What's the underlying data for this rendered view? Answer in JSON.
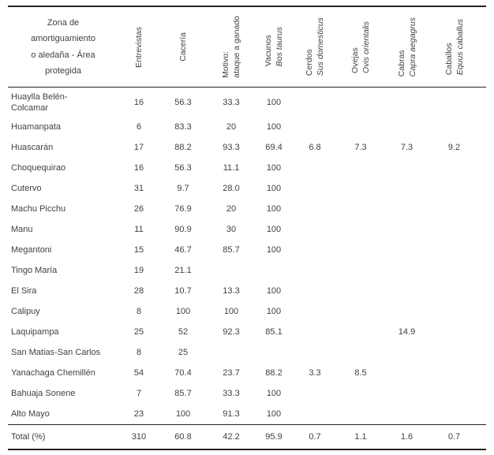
{
  "table": {
    "header": {
      "zone_lines": [
        "Zona de",
        "amortiguamiento",
        "o aledaña - Área",
        "protegida"
      ],
      "columns": [
        {
          "label": "Entrevistas",
          "sublabel": ""
        },
        {
          "label": "Cacería",
          "sublabel": ""
        },
        {
          "label": "Motivo:",
          "sublabel": "ataque a ganado",
          "sublabel_italic": false
        },
        {
          "label": "Vacunos",
          "sublabel": "Bos taurus",
          "sublabel_italic": true
        },
        {
          "label": "Cerdos",
          "sublabel": "Sus domesticus",
          "sublabel_italic": true
        },
        {
          "label": "Ovejas",
          "sublabel": "Ovis orientalis",
          "sublabel_italic": true
        },
        {
          "label": "Cabras",
          "sublabel": "Capra aegagrus",
          "sublabel_italic": true
        },
        {
          "label": "Caballos",
          "sublabel": "Equus caballus",
          "sublabel_italic": true
        }
      ],
      "column_keys": [
        "entrevistas",
        "caceria",
        "motivo",
        "vacunos",
        "cerdos",
        "ovejas",
        "cabras",
        "caballos"
      ]
    },
    "rows": [
      {
        "name": "Huaylla Belén-",
        "name2": "Colcamar",
        "values": [
          "16",
          "56.3",
          "33.3",
          "100",
          "",
          "",
          "",
          ""
        ]
      },
      {
        "name": "Huamanpata",
        "values": [
          "6",
          "83.3",
          "20",
          "100",
          "",
          "",
          "",
          ""
        ]
      },
      {
        "name": "Huascarán",
        "values": [
          "17",
          "88.2",
          "93.3",
          "69.4",
          "6.8",
          "7.3",
          "7.3",
          "9.2"
        ]
      },
      {
        "name": "Choquequirao",
        "values": [
          "16",
          "56.3",
          "11.1",
          "100",
          "",
          "",
          "",
          ""
        ]
      },
      {
        "name": "Cutervo",
        "values": [
          "31",
          "9.7",
          "28.0",
          "100",
          "",
          "",
          "",
          ""
        ]
      },
      {
        "name": "Machu Picchu",
        "values": [
          "26",
          "76.9",
          "20",
          "100",
          "",
          "",
          "",
          ""
        ]
      },
      {
        "name": "Manu",
        "values": [
          "11",
          "90.9",
          "30",
          "100",
          "",
          "",
          "",
          ""
        ]
      },
      {
        "name": "Megantoni",
        "values": [
          "15",
          "46.7",
          "85.7",
          "100",
          "",
          "",
          "",
          ""
        ]
      },
      {
        "name": "Tingo María",
        "values": [
          "19",
          "21.1",
          "",
          "",
          "",
          "",
          "",
          ""
        ]
      },
      {
        "name": "El Sira",
        "values": [
          "28",
          "10.7",
          "13.3",
          "100",
          "",
          "",
          "",
          ""
        ]
      },
      {
        "name": "Calipuy",
        "values": [
          "8",
          "100",
          "100",
          "100",
          "",
          "",
          "",
          ""
        ]
      },
      {
        "name": "Laquipampa",
        "values": [
          "25",
          "52",
          "92.3",
          "85.1",
          "",
          "",
          "14.9",
          ""
        ]
      },
      {
        "name": "San Matias-San Carlos",
        "values": [
          "8",
          "25",
          "",
          "",
          "",
          "",
          "",
          ""
        ]
      },
      {
        "name": "Yanachaga Chemillén",
        "values": [
          "54",
          "70.4",
          "23.7",
          "88.2",
          "3.3",
          "8.5",
          "",
          ""
        ]
      },
      {
        "name": "Bahuaja Sonene",
        "values": [
          "7",
          "85.7",
          "33.3",
          "100",
          "",
          "",
          "",
          ""
        ]
      },
      {
        "name": "Alto Mayo",
        "values": [
          "23",
          "100",
          "91.3",
          "100",
          "",
          "",
          "",
          ""
        ]
      },
      {
        "name": "Total (%)",
        "total": true,
        "values": [
          "310",
          "60.8",
          "42.2",
          "95.9",
          "0.7",
          "1.1",
          "1.6",
          "0.7"
        ]
      }
    ]
  }
}
